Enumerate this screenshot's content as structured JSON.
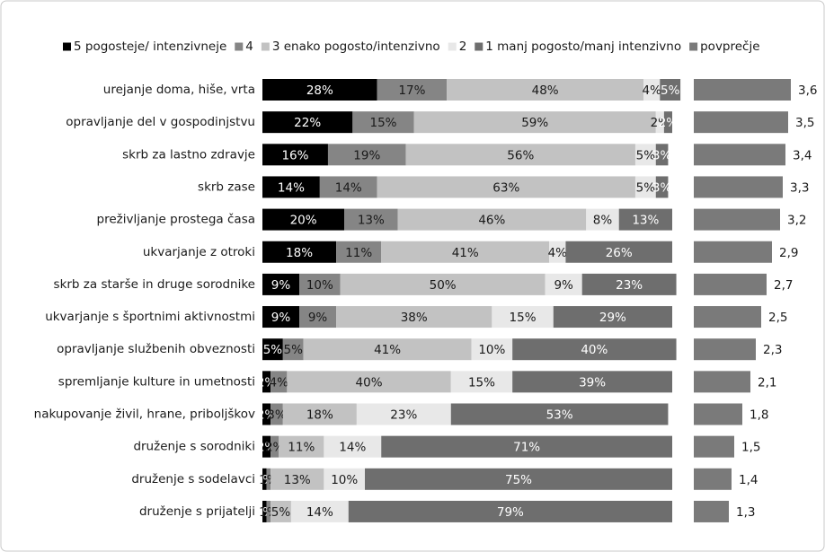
{
  "chart_data": {
    "type": "bar",
    "orientation": "horizontal",
    "stacked": true,
    "categories": [
      "urejanje doma, hiše, vrta",
      "opravljanje del v gospodinjstvu",
      "skrb za lastno zdravje",
      "skrb zase",
      "preživljanje prostega časa",
      "ukvarjanje z otroki",
      "skrb za starše in druge sorodnike",
      "ukvarjanje s športnimi aktivnostmi",
      "opravljanje službenih obveznosti",
      "spremljanje kulture in umetnosti",
      "nakupovanje živil, hrane, priboljškov",
      "druženje s sorodniki",
      "druženje s sodelavci",
      "druženje s prijatelji"
    ],
    "series": [
      {
        "name": "5 pogosteje/ intenzivneje",
        "color": "#000000",
        "label_color": "#ffffff",
        "values": [
          28,
          22,
          16,
          14,
          20,
          18,
          9,
          9,
          5,
          2,
          2,
          2,
          1,
          1
        ],
        "value_labels": [
          "28%",
          "22%",
          "16%",
          "14%",
          "20%",
          "18%",
          "9%",
          "9%",
          "5%",
          "2%",
          "2%",
          "2%",
          "1%",
          "1%"
        ]
      },
      {
        "name": "4",
        "color": "#858585",
        "label_color": "#1a1a1a",
        "values": [
          17,
          15,
          19,
          14,
          13,
          11,
          10,
          9,
          5,
          4,
          3,
          2,
          1,
          1
        ],
        "value_labels": [
          "17%",
          "15%",
          "19%",
          "14%",
          "13%",
          "11%",
          "10%",
          "9%",
          "5%",
          "4%",
          "3%",
          "2%",
          "1%",
          "1%"
        ]
      },
      {
        "name": "3 enako pogosto/intenzivno",
        "color": "#c2c2c2",
        "label_color": "#1a1a1a",
        "values": [
          48,
          59,
          56,
          63,
          46,
          41,
          50,
          38,
          41,
          40,
          18,
          11,
          13,
          5
        ],
        "value_labels": [
          "48%",
          "59%",
          "56%",
          "63%",
          "46%",
          "41%",
          "50%",
          "38%",
          "41%",
          "40%",
          "18%",
          "11%",
          "13%",
          "5%"
        ]
      },
      {
        "name": "2",
        "color": "#e8e8e8",
        "label_color": "#1a1a1a",
        "values": [
          4,
          2,
          5,
          5,
          8,
          4,
          9,
          15,
          10,
          15,
          23,
          14,
          10,
          14
        ],
        "value_labels": [
          "4%",
          "2%",
          "5%",
          "5%",
          "8%",
          "4%",
          "9%",
          "15%",
          "10%",
          "15%",
          "23%",
          "14%",
          "10%",
          "14%"
        ]
      },
      {
        "name": "1 manj pogosto/manj intenzivno",
        "color": "#6e6e6e",
        "label_color": "#ffffff",
        "values": [
          5,
          2,
          3,
          3,
          13,
          26,
          23,
          29,
          40,
          39,
          53,
          71,
          75,
          79
        ],
        "value_labels": [
          "5%",
          "2%",
          "3%",
          "3%",
          "13%",
          "26%",
          "23%",
          "29%",
          "40%",
          "39%",
          "53%",
          "71%",
          "75%",
          "79%"
        ]
      }
    ],
    "average": {
      "name": "povprečje",
      "color": "#7a7a7a",
      "values": [
        3.6,
        3.5,
        3.4,
        3.3,
        3.2,
        2.9,
        2.7,
        2.5,
        2.3,
        2.1,
        1.8,
        1.5,
        1.4,
        1.3
      ],
      "value_labels": [
        "3,6",
        "3,5",
        "3,4",
        "3,3",
        "3,2",
        "2,9",
        "2,7",
        "2,5",
        "2,3",
        "2,1",
        "1,8",
        "1,5",
        "1,4",
        "1,3"
      ]
    }
  }
}
